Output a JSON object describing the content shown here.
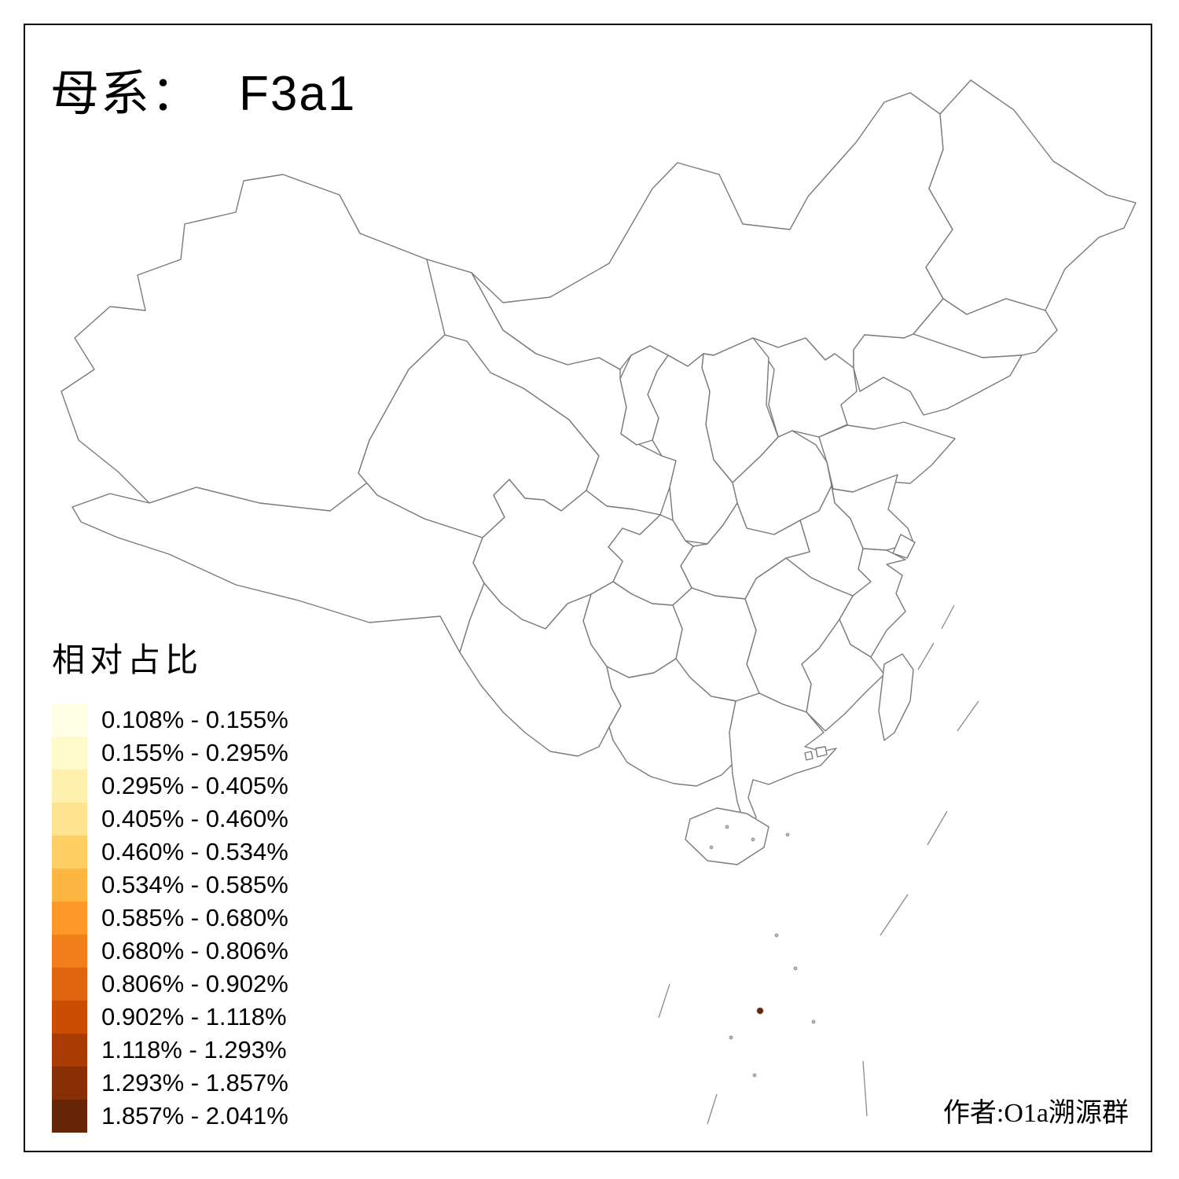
{
  "title": {
    "prefix": "母系：",
    "haplogroup": "F3a1"
  },
  "attribution": "作者:O1a溯源群",
  "legend": {
    "title": "相对占比",
    "classes": [
      {
        "range": "0.108% - 0.155%",
        "color": "#FFFFE5"
      },
      {
        "range": "0.155% - 0.295%",
        "color": "#FFFACA"
      },
      {
        "range": "0.295% - 0.405%",
        "color": "#FFF0AE"
      },
      {
        "range": "0.405% - 0.460%",
        "color": "#FEE391"
      },
      {
        "range": "0.460% - 0.534%",
        "color": "#FECE65"
      },
      {
        "range": "0.534% - 0.585%",
        "color": "#FEB642"
      },
      {
        "range": "0.585% - 0.680%",
        "color": "#FE9929"
      },
      {
        "range": "0.680% - 0.806%",
        "color": "#F27E1B"
      },
      {
        "range": "0.806% - 0.902%",
        "color": "#E1640E"
      },
      {
        "range": "0.902% - 1.118%",
        "color": "#CC4C02"
      },
      {
        "range": "1.118% - 1.293%",
        "color": "#AA3C03"
      },
      {
        "range": "1.293% - 1.857%",
        "color": "#882F05"
      },
      {
        "range": "1.857% - 2.041%",
        "color": "#662506"
      }
    ]
  },
  "map": {
    "no_data_color": "#D6D6D6",
    "border_color": "#7A7A7A",
    "background": "#FFFFFF",
    "provinces": [
      {
        "id": "xinjiang",
        "class": null
      },
      {
        "id": "xizang",
        "class": null
      },
      {
        "id": "qinghai",
        "class": null
      },
      {
        "id": "gansu",
        "class": null
      },
      {
        "id": "neimenggu",
        "class": null
      },
      {
        "id": "hongkong",
        "class": null
      },
      {
        "id": "macau",
        "class": null
      },
      {
        "id": "heilongjiang",
        "class": 2
      },
      {
        "id": "jilin",
        "class": 5
      },
      {
        "id": "liaoning",
        "class": 1
      },
      {
        "id": "beijing",
        "class": 4
      },
      {
        "id": "tianjin",
        "class": 6
      },
      {
        "id": "hebei",
        "class": 3
      },
      {
        "id": "shanxi",
        "class": 4
      },
      {
        "id": "shandong",
        "class": 1
      },
      {
        "id": "henan",
        "class": 2
      },
      {
        "id": "jiangsu",
        "class": 3
      },
      {
        "id": "anhui",
        "class": 3
      },
      {
        "id": "shanghai",
        "class": 7
      },
      {
        "id": "zhejiang",
        "class": 7
      },
      {
        "id": "fujian",
        "class": 8
      },
      {
        "id": "jiangxi",
        "class": 8
      },
      {
        "id": "hubei",
        "class": 9
      },
      {
        "id": "hunan",
        "class": 10
      },
      {
        "id": "chongqing",
        "class": 10
      },
      {
        "id": "sichuan",
        "class": 9
      },
      {
        "id": "guizhou",
        "class": 11
      },
      {
        "id": "yunnan",
        "class": 11
      },
      {
        "id": "guangxi",
        "class": 12
      },
      {
        "id": "guangdong",
        "class": 12
      },
      {
        "id": "hainan",
        "class": 13
      },
      {
        "id": "taiwan",
        "class": 10
      },
      {
        "id": "ningxia",
        "class": 6
      },
      {
        "id": "shaanxi",
        "class": 5
      }
    ]
  }
}
